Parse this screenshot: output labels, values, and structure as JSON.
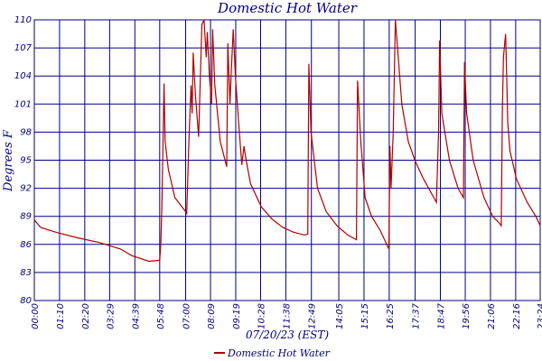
{
  "chart_data": {
    "type": "line",
    "title": "Domestic Hot Water",
    "ylabel": "Degrees F",
    "xlabel": "07/20/23 (EST)",
    "x": [
      0,
      0.3,
      1,
      2,
      3,
      4,
      4.5,
      5.3,
      5.8,
      5.85,
      5.9,
      6.0,
      6.05,
      6.2,
      6.5,
      7.0,
      7.05,
      7.15,
      7.25,
      7.3,
      7.35,
      7.45,
      7.6,
      7.75,
      7.85,
      7.95,
      8.0,
      8.1,
      8.2,
      8.25,
      8.35,
      8.6,
      8.9,
      8.95,
      9.05,
      9.1,
      9.2,
      9.3,
      9.45,
      9.6,
      9.7,
      9.8,
      10.0,
      10.5,
      11.0,
      11.5,
      12.0,
      12.5,
      12.65,
      12.7,
      12.8,
      13.1,
      13.5,
      14.0,
      14.5,
      14.9,
      14.95,
      15.1,
      15.3,
      15.6,
      16.0,
      16.4,
      16.45,
      16.5,
      16.6,
      16.7,
      16.8,
      17.0,
      17.3,
      17.6,
      18.0,
      18.6,
      18.7,
      18.75,
      18.85,
      19.2,
      19.6,
      19.85,
      19.9,
      20.0,
      20.3,
      20.8,
      21.2,
      21.5,
      21.6,
      21.65,
      21.7,
      21.8,
      21.85,
      21.9,
      22.0,
      22.3,
      22.8,
      23.2,
      23.4
    ],
    "series": [
      {
        "name": "Domestic Hot Water",
        "color": "#b00000",
        "values": [
          88.6,
          87.8,
          87.3,
          86.7,
          86.2,
          85.5,
          84.8,
          84.2,
          84.3,
          86,
          90,
          103.2,
          97,
          94,
          91,
          89.5,
          89.3,
          97,
          103,
          100,
          106.5,
          102,
          97.5,
          109.5,
          110,
          106,
          108.7,
          104,
          101,
          109,
          103,
          97,
          94.3,
          107.5,
          101,
          104,
          109,
          104,
          99,
          94.5,
          96.5,
          95,
          92.5,
          90,
          88.7,
          87.8,
          87.3,
          87.0,
          87.1,
          105.3,
          98,
          92,
          89.5,
          88,
          87,
          86.5,
          103.5,
          97,
          91,
          89,
          87.5,
          85.5,
          96.5,
          92,
          98,
          110,
          107,
          101,
          97,
          95,
          93,
          90.5,
          98,
          107.8,
          100,
          95,
          92,
          91,
          105.5,
          100,
          95,
          91,
          89,
          88.3,
          88,
          100,
          106,
          108.5,
          104,
          99,
          96,
          93,
          90.5,
          89,
          88
        ]
      }
    ],
    "xlim": [
      0,
      23.4
    ],
    "ylim": [
      80,
      110
    ],
    "yticks": [
      80,
      83,
      86,
      89,
      92,
      95,
      98,
      101,
      104,
      107,
      110
    ],
    "xticks": [
      {
        "value": 0,
        "label": "00:00"
      },
      {
        "value": 1.1667,
        "label": "01:10"
      },
      {
        "value": 2.3333,
        "label": "02:20"
      },
      {
        "value": 3.4833,
        "label": "03:29"
      },
      {
        "value": 4.65,
        "label": "04:39"
      },
      {
        "value": 5.8,
        "label": "05:48"
      },
      {
        "value": 7.0,
        "label": "07:00"
      },
      {
        "value": 8.15,
        "label": "08:09"
      },
      {
        "value": 9.3167,
        "label": "09:19"
      },
      {
        "value": 10.4667,
        "label": "10:28"
      },
      {
        "value": 11.6333,
        "label": "11:38"
      },
      {
        "value": 12.8167,
        "label": "12:49"
      },
      {
        "value": 14.0833,
        "label": "14:05"
      },
      {
        "value": 15.25,
        "label": "15:15"
      },
      {
        "value": 16.4167,
        "label": "16:25"
      },
      {
        "value": 17.6167,
        "label": "17:37"
      },
      {
        "value": 18.7833,
        "label": "18:47"
      },
      {
        "value": 19.9333,
        "label": "19:56"
      },
      {
        "value": 21.1,
        "label": "21:06"
      },
      {
        "value": 22.2667,
        "label": "22:16"
      },
      {
        "value": 23.4,
        "label": "23:24"
      }
    ],
    "grid": true
  }
}
